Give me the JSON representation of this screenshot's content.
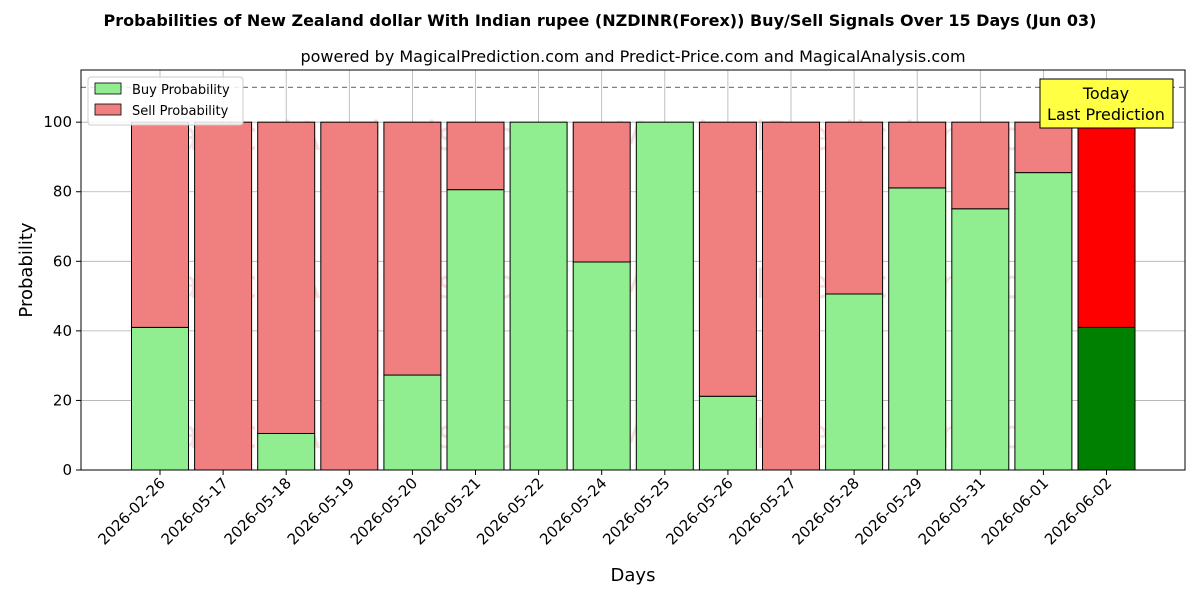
{
  "chart_data": {
    "type": "bar",
    "stacked": true,
    "title": "Probabilities of New Zealand dollar With Indian rupee (NZDINR(Forex)) Buy/Sell Signals Over 15 Days (Jun 03)",
    "subtitle": "powered by MagicalPrediction.com and Predict-Price.com and MagicalAnalysis.com",
    "xlabel": "Days",
    "ylabel": "Probability",
    "ylim": [
      0,
      115
    ],
    "yticks": [
      0,
      20,
      40,
      60,
      80,
      100
    ],
    "grid": true,
    "legend_position": "top-left",
    "reference_line": 110,
    "categories": [
      "2026-02-26",
      "2026-05-17",
      "2026-05-18",
      "2026-05-19",
      "2026-05-20",
      "2026-05-21",
      "2026-05-22",
      "2026-05-24",
      "2026-05-25",
      "2026-05-26",
      "2026-05-27",
      "2026-05-28",
      "2026-05-29",
      "2026-05-31",
      "2026-06-01",
      "2026-06-02"
    ],
    "series": [
      {
        "name": "Buy Probability",
        "color": "#90ee90",
        "highlight_color": "#008000",
        "values": [
          41,
          0,
          10.5,
          0,
          27.3,
          80.6,
          100,
          59.8,
          100,
          21.2,
          0,
          50.6,
          81.1,
          75.1,
          85.5,
          41
        ]
      },
      {
        "name": "Sell Probability",
        "color": "#f08080",
        "highlight_color": "#ff0000",
        "values": [
          59,
          100,
          89.5,
          100,
          72.7,
          19.4,
          0,
          40.2,
          0,
          78.8,
          100,
          49.4,
          18.9,
          24.9,
          14.5,
          59
        ]
      }
    ],
    "highlight_index": 15,
    "annotation": {
      "line1": "Today",
      "line2": "Last Prediction",
      "color": "#ffff44"
    },
    "watermarks": [
      "MagicalAnalysis.com",
      "MagicalPrediction.com"
    ]
  }
}
